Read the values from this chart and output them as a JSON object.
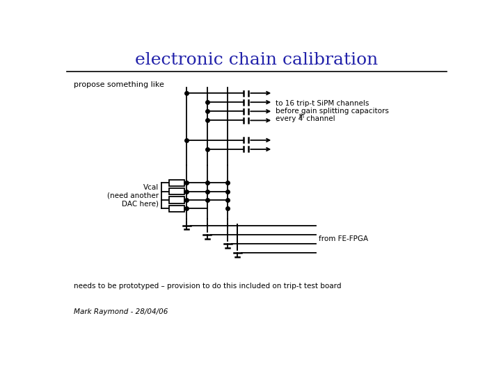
{
  "title": "electronic chain calibration",
  "title_color": "#2222aa",
  "title_fontsize": 18,
  "bg_color": "#ffffff",
  "text_propose": "propose something like",
  "text_fpga": "from FE-FPGA",
  "text_vcal": "Vcal\n(need another\nDAC here)",
  "text_needs": "needs to be prototyped – provision to do this included on trip-t test board",
  "text_author": "Mark Raymond - 28/04/06",
  "line_color": "#000000",
  "lw": 1.3
}
